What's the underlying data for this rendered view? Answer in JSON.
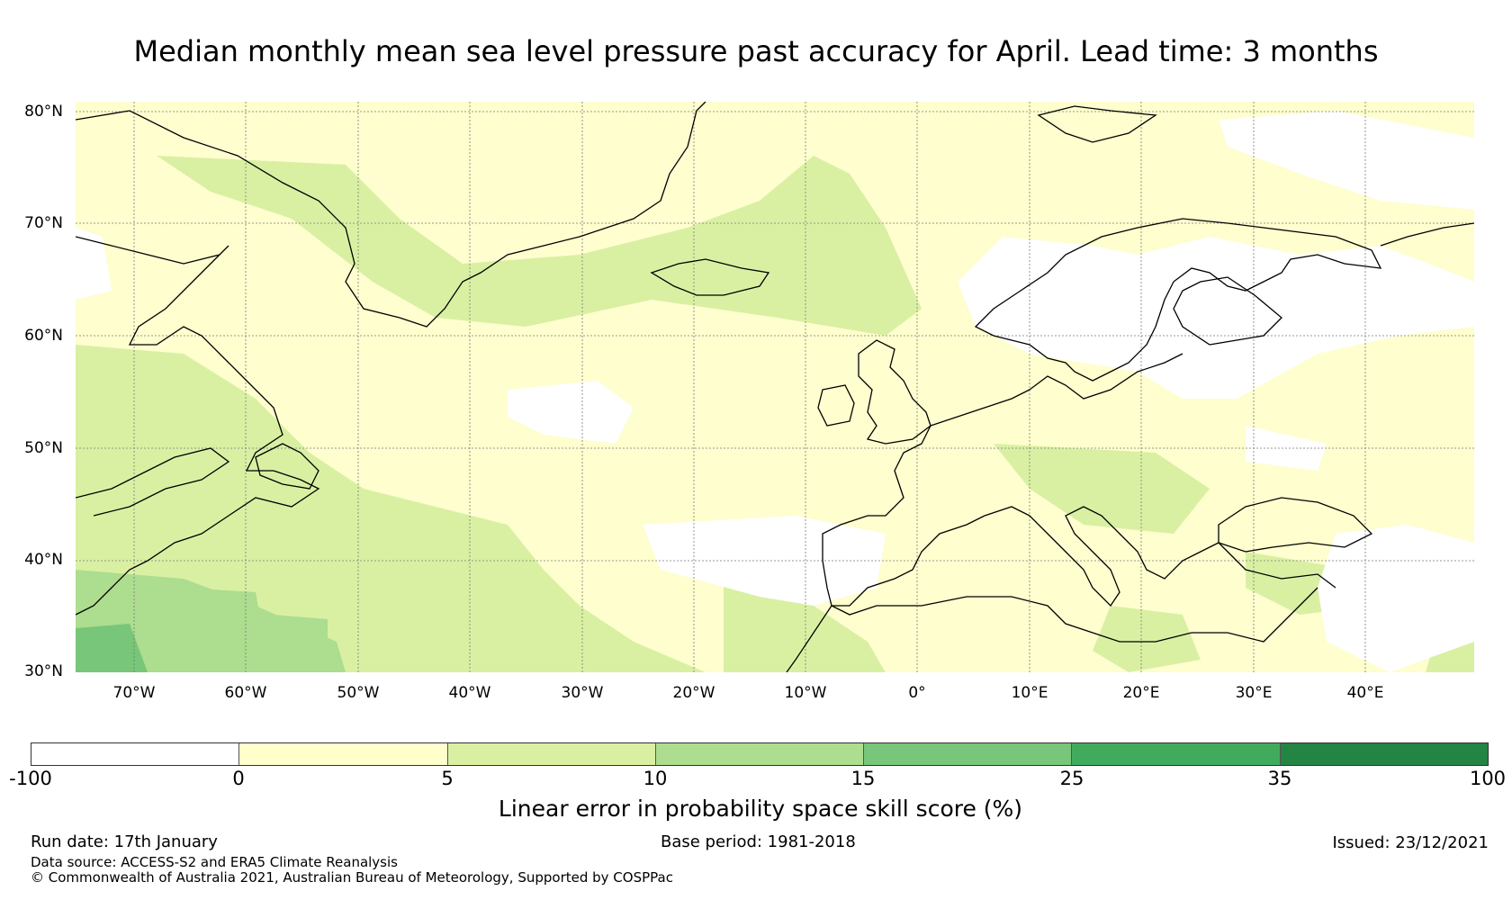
{
  "title": "Median monthly mean sea level pressure past accuracy for April. Lead time: 3 months",
  "map": {
    "region": "North Atlantic and Europe",
    "lat_labels": [
      "80°N",
      "70°N",
      "60°N",
      "50°N",
      "40°N",
      "30°N"
    ],
    "lon_labels": [
      "70°W",
      "60°W",
      "50°W",
      "40°W",
      "30°W",
      "20°W",
      "10°W",
      "0°",
      "10°E",
      "20°E",
      "30°E",
      "40°E"
    ],
    "gridlines": true,
    "features": [
      "Greenland",
      "Iceland",
      "Scandinavia",
      "British Isles",
      "Iberia",
      "Mediterranean",
      "Black Sea",
      "Labrador",
      "Newfoundland"
    ]
  },
  "legend": {
    "label": "Linear error in probability space skill score (%)",
    "ticks": [
      "-100",
      "0",
      "5",
      "10",
      "15",
      "25",
      "35",
      "100"
    ],
    "colors": [
      "#ffffff",
      "#ffffcc",
      "#d9f0a3",
      "#addd8e",
      "#78c679",
      "#41ab5d",
      "#238443"
    ]
  },
  "footer": {
    "run_date": "Run date: 17th January",
    "base_period": "Base period: 1981-2018",
    "issued": "Issued: 23/12/2021",
    "data_source": "Data source: ACCESS-S2 and ERA5 Climate Reanalysis",
    "copyright": "© Commonwealth of Australia 2021, Australian Bureau of Meteorology, Supported by COSPPac"
  }
}
